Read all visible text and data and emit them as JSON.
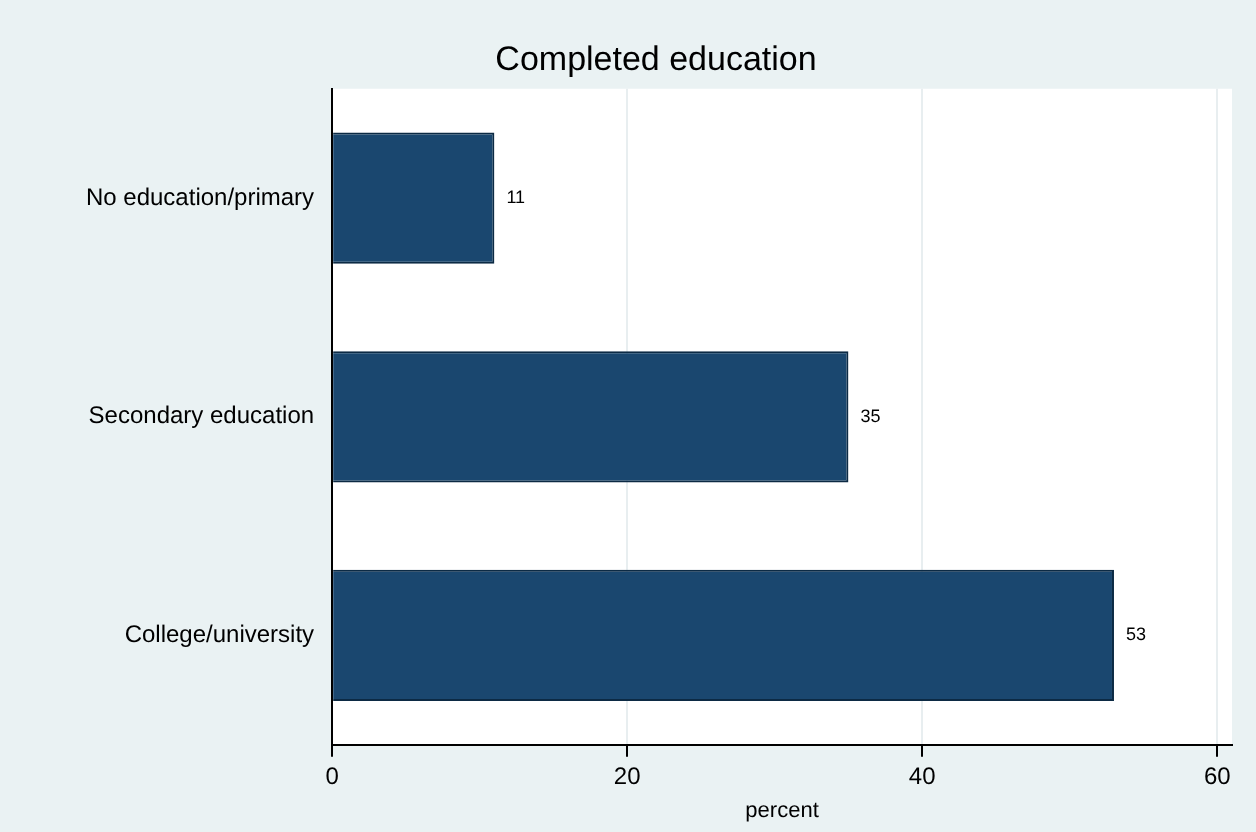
{
  "chart_data": {
    "type": "bar",
    "orientation": "horizontal",
    "title": "Completed education",
    "xlabel": "percent",
    "categories": [
      "No education/primary",
      "Secondary education",
      "College/university"
    ],
    "values": [
      11,
      35,
      53
    ],
    "color": "#1a476f",
    "data_labels": true,
    "xlim": [
      0,
      61
    ],
    "xticks": [
      0,
      20,
      40,
      60
    ],
    "grid": "x",
    "legend": false
  }
}
